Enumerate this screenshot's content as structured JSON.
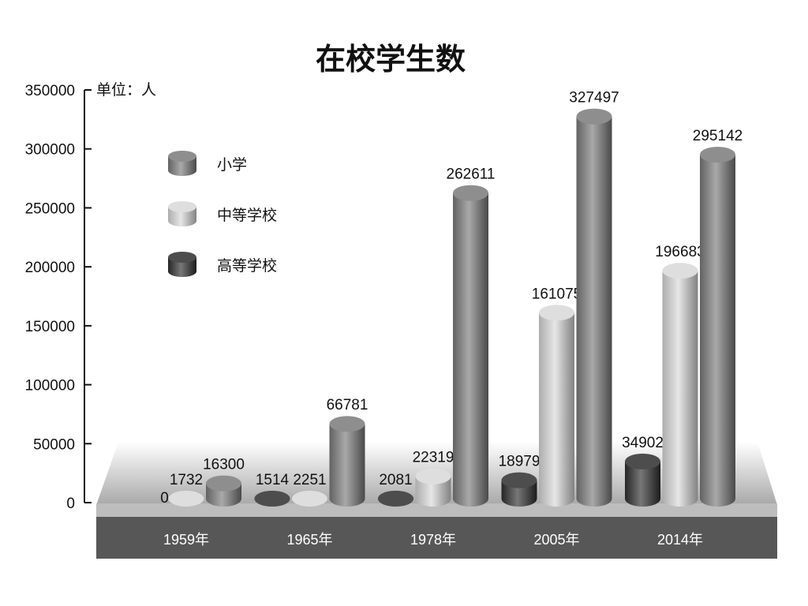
{
  "chart_data": {
    "type": "bar",
    "style": "3d-cylinder",
    "title": "在校学生数",
    "unit_label": "单位：人",
    "categories": [
      "1959年",
      "1965年",
      "1978年",
      "2005年",
      "2014年"
    ],
    "series": [
      {
        "name": "高等学校",
        "color": "#2e2e2e",
        "values": [
          0,
          1514,
          2081,
          18979,
          34902
        ]
      },
      {
        "name": "中等学校",
        "color": "#d8d8d8",
        "values": [
          1732,
          2251,
          22319,
          161075,
          196683
        ]
      },
      {
        "name": "小学",
        "color": "#7a7a7a",
        "values": [
          16300,
          66781,
          262611,
          327497,
          295142
        ]
      }
    ],
    "legend_order": [
      "小学",
      "中等学校",
      "高等学校"
    ],
    "yticks": [
      0,
      50000,
      100000,
      150000,
      200000,
      250000,
      300000,
      350000
    ],
    "ylim": [
      0,
      350000
    ],
    "legend_placement": "top-left",
    "grid": false
  }
}
